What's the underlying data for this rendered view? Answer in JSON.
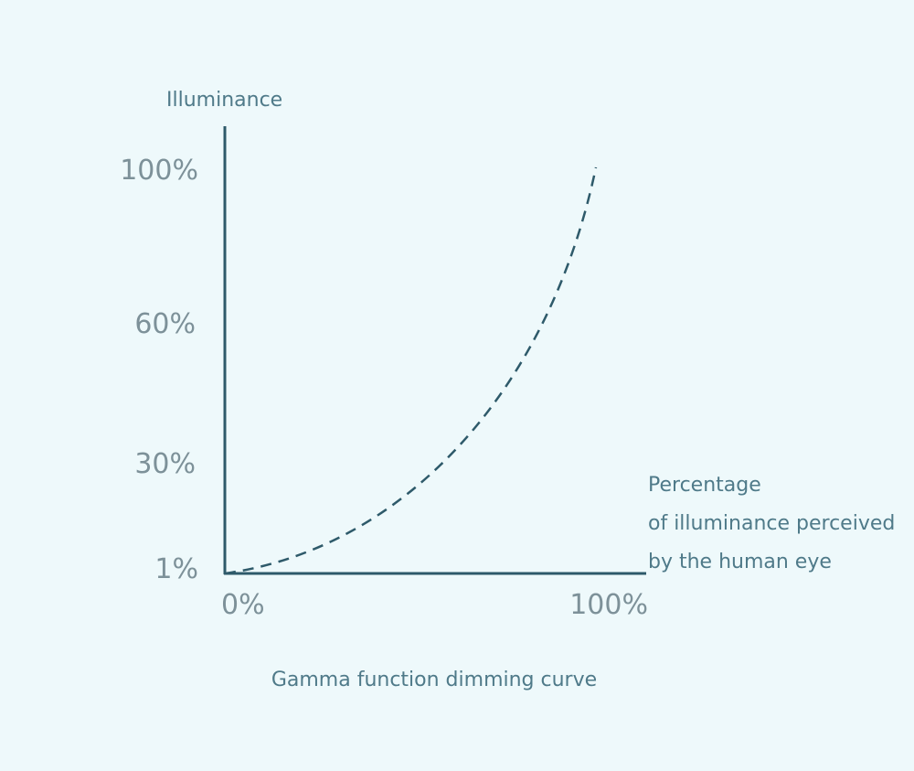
{
  "y_axis": {
    "title": "Illuminance",
    "ticks": [
      "100%",
      "60%",
      "30%",
      "1%"
    ]
  },
  "x_axis": {
    "title_lines": [
      "Percentage",
      "of illuminance perceived",
      "by the human eye"
    ],
    "ticks": [
      "0%",
      "100%"
    ]
  },
  "caption": "Gamma function dimming curve"
}
